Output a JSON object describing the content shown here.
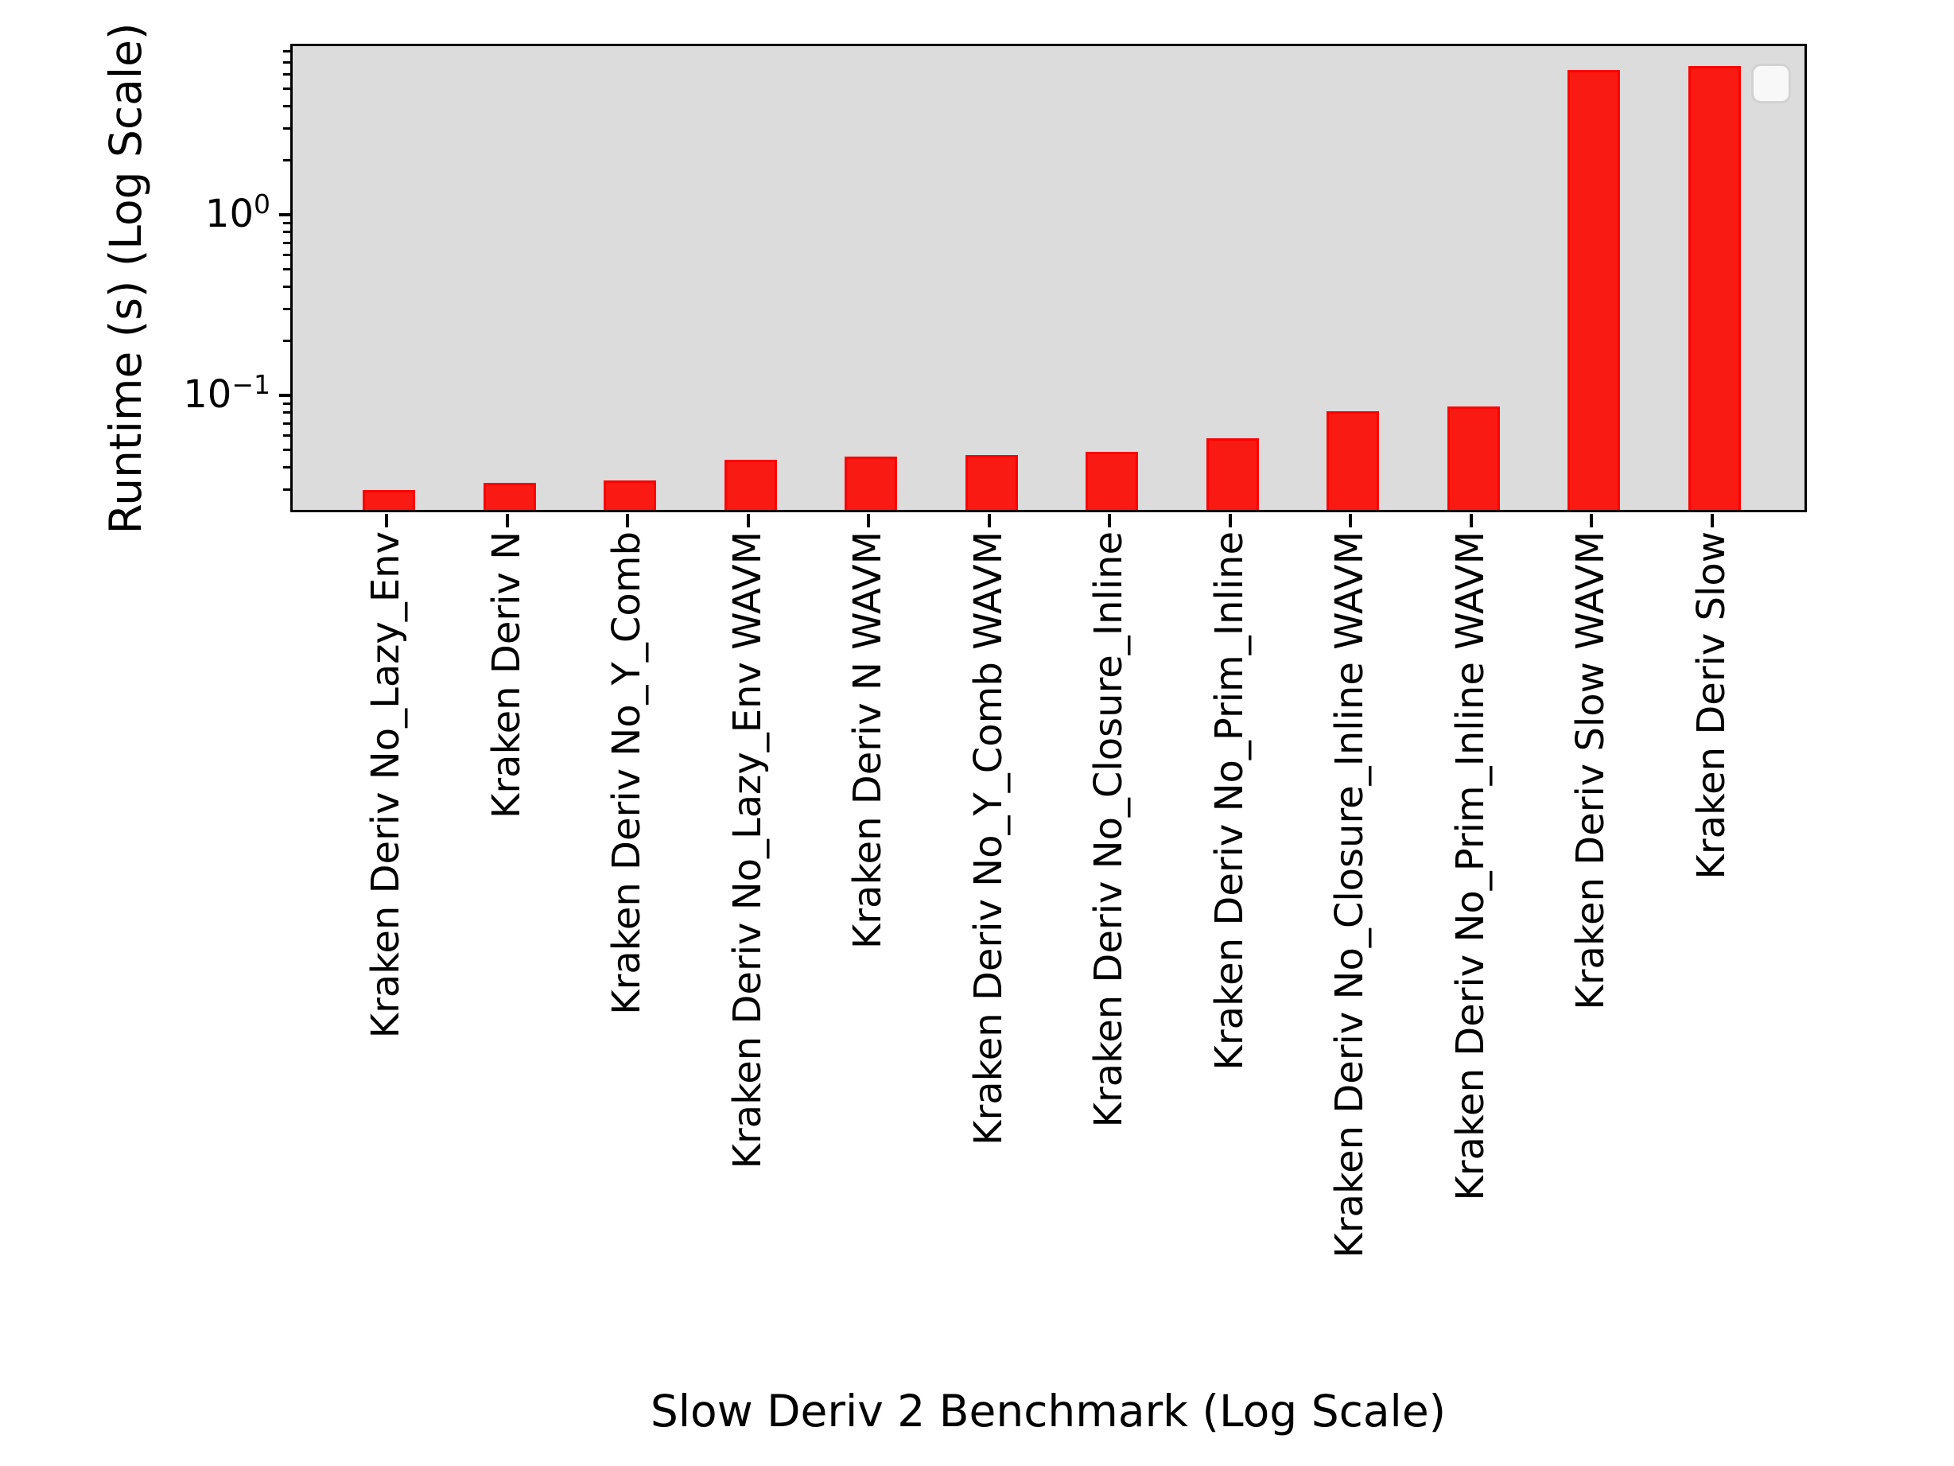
{
  "chart_data": {
    "type": "bar",
    "title": "",
    "xlabel": "Slow Deriv 2 Benchmark (Log Scale)",
    "ylabel": "Runtime (s) (Log Scale)",
    "yscale": "log",
    "ylim": [
      0.023,
      8.8
    ],
    "grid": false,
    "legend": {
      "visible": true,
      "entries": [],
      "position": "upper-right"
    },
    "colors": {
      "bar_fill": "#f91a13",
      "bar_edge": "#fe0000",
      "plot_background": "#dcdcdc",
      "figure_background": "#ffffff"
    },
    "categories": [
      "Kraken Deriv No_Lazy_Env",
      "Kraken Deriv N",
      "Kraken Deriv No_Y_Comb",
      "Kraken Deriv No_Lazy_Env WAVM",
      "Kraken Deriv N WAVM",
      "Kraken Deriv No_Y_Comb WAVM",
      "Kraken Deriv No_Closure_Inline",
      "Kraken Deriv No_Prim_Inline",
      "Kraken Deriv No_Closure_Inline WAVM",
      "Kraken Deriv No_Prim_Inline WAVM",
      "Kraken Deriv Slow WAVM",
      "Kraken Deriv Slow"
    ],
    "values": [
      0.03,
      0.033,
      0.034,
      0.044,
      0.046,
      0.047,
      0.049,
      0.058,
      0.082,
      0.087,
      6.4,
      6.7
    ],
    "y_major_ticks": [
      {
        "mantissa": "10",
        "exponent": "0",
        "value": 1
      },
      {
        "mantissa": "10",
        "exponent": "−1",
        "value": 0.1
      }
    ]
  }
}
